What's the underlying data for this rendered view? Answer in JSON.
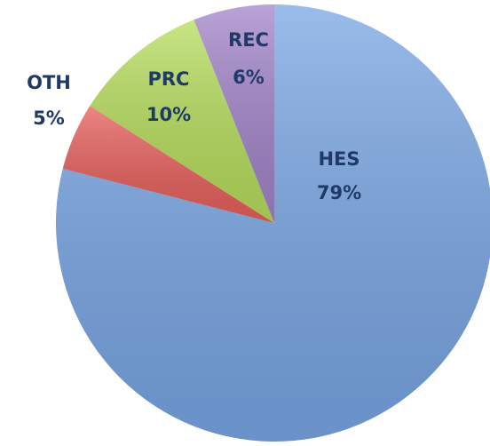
{
  "chart_data": {
    "type": "pie",
    "categories": [
      "HES",
      "OTH",
      "PRC",
      "REC"
    ],
    "values": [
      79,
      5,
      10,
      6
    ],
    "value_labels": [
      "79%",
      "5%",
      "10%",
      "6%"
    ],
    "colors": [
      "#79a6e4",
      "#e65f5b",
      "#b6dd5c",
      "#a184c9"
    ]
  }
}
